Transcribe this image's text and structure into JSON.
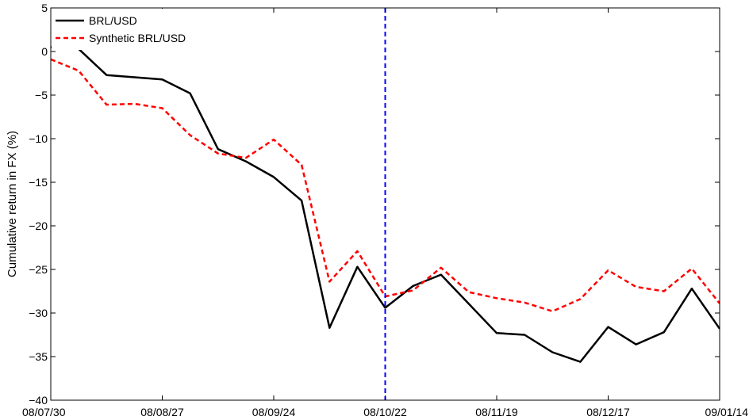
{
  "chart_data": {
    "type": "line",
    "xlabel": "",
    "ylabel": "Cumulative return in FX (%)",
    "ylim": [
      -40,
      5
    ],
    "yticks": [
      5,
      0,
      -5,
      -10,
      -15,
      -20,
      -25,
      -30,
      -35,
      -40
    ],
    "yticklabels": [
      "5",
      "0",
      "−5",
      "−10",
      "−15",
      "−20",
      "−25",
      "−30",
      "−35",
      "−40"
    ],
    "xlim": [
      "2008-07-30",
      "2009-01-14"
    ],
    "xticks": [
      "2008-07-30",
      "2008-08-27",
      "2008-09-24",
      "2008-10-22",
      "2008-11-19",
      "2008-12-17",
      "2009-01-14"
    ],
    "xticklabels": [
      "08/07/30",
      "08/08/27",
      "08/09/24",
      "08/10/22",
      "08/11/19",
      "08/12/17",
      "09/01/14"
    ],
    "vline": {
      "x": "2008-10-22",
      "color": "#0000ff",
      "style": "dashed"
    },
    "legend": {
      "position": "top-left"
    },
    "grid": false,
    "series": [
      {
        "name": "BRL/USD",
        "color": "#000000",
        "style": "solid",
        "x": [
          "2008-07-30",
          "2008-08-06",
          "2008-08-13",
          "2008-08-27",
          "2008-09-03",
          "2008-09-10",
          "2008-09-17",
          "2008-09-24",
          "2008-10-01",
          "2008-10-08",
          "2008-10-15",
          "2008-10-22",
          "2008-10-29",
          "2008-11-05",
          "2008-11-19",
          "2008-11-26",
          "2008-12-03",
          "2008-12-10",
          "2008-12-17",
          "2008-12-24",
          "2008-12-31",
          "2009-01-07",
          "2009-01-14"
        ],
        "values": [
          0.5,
          0.3,
          -2.7,
          -3.2,
          -4.8,
          -11.2,
          -12.6,
          -14.4,
          -17.1,
          -31.7,
          -24.7,
          -29.4,
          -26.9,
          -25.6,
          -32.3,
          -32.5,
          -34.5,
          -35.6,
          -31.6,
          -33.6,
          -32.2,
          -27.2,
          -31.8
        ]
      },
      {
        "name": "Synthetic BRL/USD",
        "color": "#ff0000",
        "style": "dashed",
        "x": [
          "2008-07-30",
          "2008-08-06",
          "2008-08-13",
          "2008-08-20",
          "2008-08-27",
          "2008-09-03",
          "2008-09-10",
          "2008-09-17",
          "2008-09-24",
          "2008-10-01",
          "2008-10-08",
          "2008-10-15",
          "2008-10-22",
          "2008-10-29",
          "2008-11-05",
          "2008-11-12",
          "2008-11-19",
          "2008-11-26",
          "2008-12-03",
          "2008-12-10",
          "2008-12-17",
          "2008-12-24",
          "2008-12-31",
          "2009-01-07",
          "2009-01-14"
        ],
        "values": [
          -0.9,
          -2.2,
          -6.1,
          -6.0,
          -6.5,
          -9.6,
          -11.7,
          -12.2,
          -10.1,
          -13.0,
          -26.4,
          -22.9,
          -28.1,
          -27.4,
          -24.8,
          -27.6,
          -28.3,
          -28.8,
          -29.8,
          -28.4,
          -25.1,
          -27.0,
          -27.5,
          -24.9,
          -28.9
        ]
      }
    ]
  }
}
